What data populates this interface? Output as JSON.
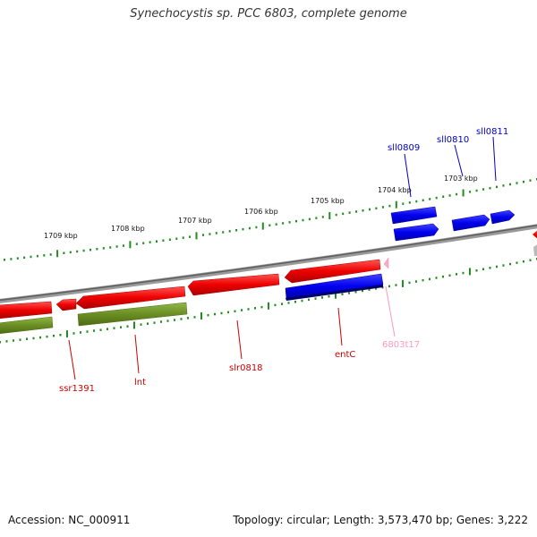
{
  "title": "Synechocystis sp. PCC 6803, complete genome",
  "footer": {
    "accession": "Accession: NC_000911",
    "summary": "Topology: circular; Length: 3,573,470 bp; Genes: 3,222"
  },
  "kbp_labels": [
    "1709 kbp",
    "1708 kbp",
    "1707 kbp",
    "1706 kbp",
    "1705 kbp",
    "1704 kbp",
    "1703 kbp"
  ],
  "gene_labels": {
    "sll0809": "sll0809",
    "sll0810": "sll0810",
    "sll0811": "sll0811",
    "ssr1391": "ssr1391",
    "lnt": "lnt",
    "slr0818": "slr0818",
    "entC": "entC",
    "6803t17": "6803t17"
  },
  "colors": {
    "cds_forward": "#ee0000",
    "cds_reverse": "#0000ee",
    "olive_feature": "#6b8e23",
    "trna": "#ffaacc",
    "backbone": "#888888",
    "ticks": "#228b22",
    "label_red": "#cc0000",
    "label_blue": "#0000bb",
    "label_pink": "#ff99bb"
  }
}
